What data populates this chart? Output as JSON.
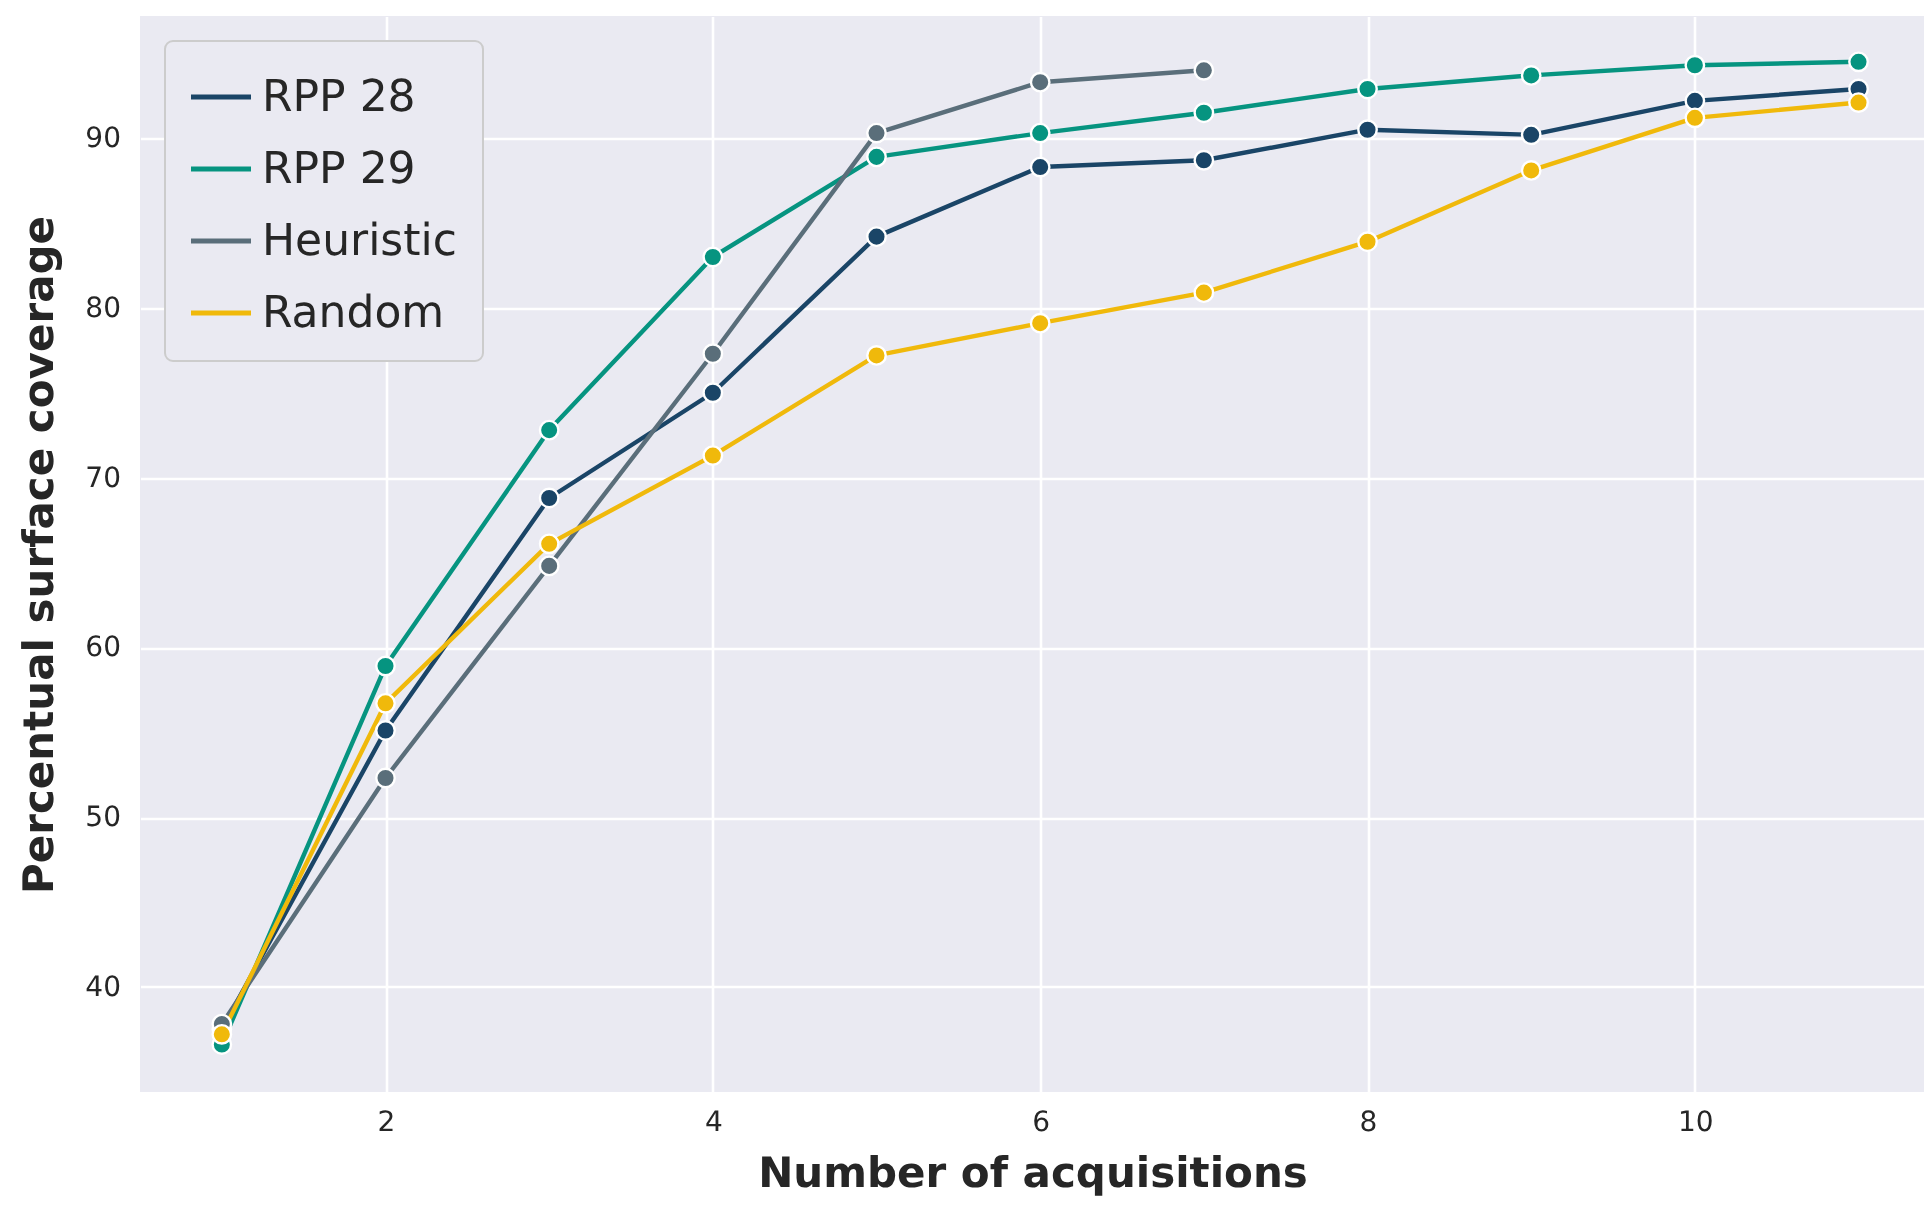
{
  "chart_data": {
    "type": "line",
    "xlabel": "Number of acquisitions",
    "ylabel": "Percentual surface coverage",
    "x": [
      1,
      2,
      3,
      4,
      5,
      6,
      7,
      8,
      9,
      10,
      11
    ],
    "series": [
      {
        "name": "RPP 28",
        "color": "#1a4567",
        "values": [
          37.5,
          55.1,
          68.8,
          75.0,
          84.2,
          88.3,
          88.7,
          90.5,
          90.2,
          92.2,
          92.9
        ]
      },
      {
        "name": "RPP 29",
        "color": "#069480",
        "values": [
          36.6,
          58.9,
          72.8,
          83.0,
          88.9,
          90.3,
          91.5,
          92.9,
          93.7,
          94.3,
          94.5
        ]
      },
      {
        "name": "Heuristic",
        "color": "#5a6e7a",
        "values": [
          37.8,
          52.3,
          64.8,
          77.3,
          90.3,
          93.3,
          94.0,
          null,
          null,
          null,
          null
        ]
      },
      {
        "name": "Random",
        "color": "#f0b90b",
        "values": [
          37.2,
          56.7,
          66.1,
          71.3,
          77.2,
          79.1,
          80.9,
          83.9,
          88.1,
          91.2,
          92.1
        ]
      }
    ],
    "xlim": [
      0.5,
      11.4
    ],
    "ylim": [
      33.8,
      97.2
    ],
    "xticks": [
      2,
      4,
      6,
      8,
      10
    ],
    "yticks": [
      40,
      50,
      60,
      70,
      80,
      90
    ],
    "grid": true,
    "legend": "top left",
    "marker": "circle",
    "line_style": "solid"
  }
}
